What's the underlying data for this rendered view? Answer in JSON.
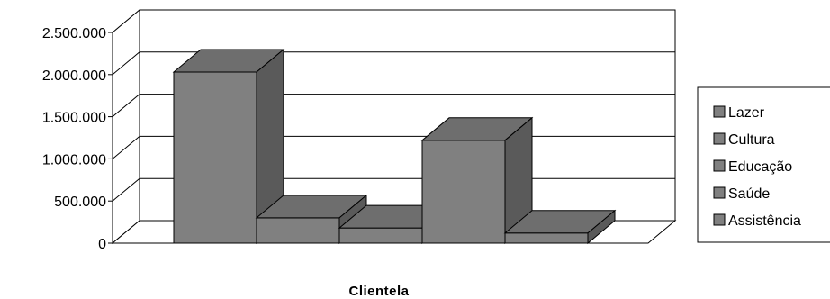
{
  "chart_data": {
    "type": "bar",
    "title": "",
    "xlabel": "Clientela",
    "ylabel": "",
    "ylim": [
      0,
      2500000
    ],
    "y_ticks": [
      0,
      500000,
      1000000,
      1500000,
      2000000,
      2500000
    ],
    "y_tick_labels": [
      "0",
      "500.000",
      "1.000.000",
      "1.500.000",
      "2.000.000",
      "2.500.000"
    ],
    "categories": [
      "Clientela"
    ],
    "series": [
      {
        "name": "Lazer",
        "values": [
          2030000
        ]
      },
      {
        "name": "Cultura",
        "values": [
          300000
        ]
      },
      {
        "name": "Educação",
        "values": [
          180000
        ]
      },
      {
        "name": "Saúde",
        "values": [
          1220000
        ]
      },
      {
        "name": "Assistência",
        "values": [
          120000
        ]
      }
    ],
    "grid": true,
    "legend_position": "right",
    "three_d": true,
    "colors": {
      "bar_front": "#808080",
      "bar_top": "#6e6e6e",
      "bar_side": "#5a5a5a",
      "outline": "#000000",
      "gridline": "#000000",
      "background": "#ffffff"
    }
  }
}
